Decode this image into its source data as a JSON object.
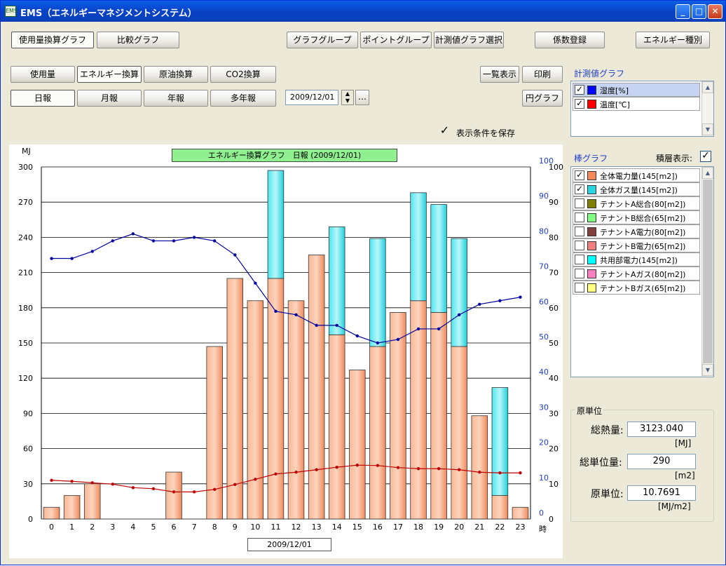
{
  "window": {
    "title": "EMS（エネルギーマネジメントシステム）",
    "icon_text": "EMS"
  },
  "top_buttons": {
    "usage_graph": "使用量換算グラフ",
    "compare_graph": "比較グラフ",
    "graph_group": "グラフグループ",
    "point_group": "ポイントグループ",
    "measure_select": "計測値グラフ選択",
    "coef_register": "係数登録",
    "energy_type": "エネルギー種別"
  },
  "mode_buttons": {
    "usage": "使用量",
    "energy": "エネルギー換算",
    "crude": "原油換算",
    "co2": "CO2換算"
  },
  "period_buttons": {
    "daily": "日報",
    "monthly": "月報",
    "yearly": "年報",
    "multi_year": "多年報"
  },
  "date_value": "2009/12/01",
  "dots_label": "…",
  "right_buttons": {
    "list": "一覧表示",
    "print": "印刷",
    "pie": "円グラフ"
  },
  "save_condition": "表示条件を保存",
  "measure_panel": {
    "title": "計測値グラフ",
    "items": [
      {
        "label": "湿度[%]",
        "color": "#0000ff",
        "checked": true
      },
      {
        "label": "温度[℃]",
        "color": "#ff0000",
        "checked": true
      }
    ]
  },
  "bar_panel": {
    "title": "棒グラフ",
    "stack_label": "積層表示:",
    "items": [
      {
        "label": "全体電力量(145[m2])",
        "color": "#f4895a",
        "checked": true
      },
      {
        "label": "全体ガス量(145[m2])",
        "color": "#2ad5e0",
        "checked": true
      },
      {
        "label": "テナントA総合(80[m2])",
        "color": "#808000",
        "checked": false
      },
      {
        "label": "テナントB総合(65[m2])",
        "color": "#80ff80",
        "checked": false
      },
      {
        "label": "テナントA電力(80[m2])",
        "color": "#804040",
        "checked": false
      },
      {
        "label": "テナントB電力(65[m2])",
        "color": "#f08080",
        "checked": false
      },
      {
        "label": "共用部電力(145[m2])",
        "color": "#00ffff",
        "checked": false
      },
      {
        "label": "テナントAガス(80[m2])",
        "color": "#ff80c0",
        "checked": false
      },
      {
        "label": "テナントBガス(65[m2])",
        "color": "#ffff80",
        "checked": false
      }
    ]
  },
  "unit_panel": {
    "title": "原単位",
    "total_heat_label": "総熱量:",
    "total_heat_value": "3123.040",
    "total_heat_unit": "[MJ]",
    "total_unit_label": "総単位量:",
    "total_unit_value": "290",
    "total_unit_unit": "[m2]",
    "intensity_label": "原単位:",
    "intensity_value": "10.7691",
    "intensity_unit": "[MJ/m2]"
  },
  "chart_data": {
    "type": "bar",
    "title": "エネルギー換算グラフ　日報 (2009/12/01)",
    "xlabel": "2009/12/01",
    "x_unit": "時",
    "ylabel": "MJ",
    "ylim": [
      0,
      300
    ],
    "y_ticks": [
      0,
      30,
      60,
      90,
      120,
      150,
      180,
      210,
      240,
      270,
      300
    ],
    "y2_ticks_blue": [
      0,
      10,
      20,
      30,
      40,
      50,
      60,
      70,
      80,
      90,
      100
    ],
    "y2_ticks_black": [
      0,
      10,
      20,
      30,
      40,
      50,
      60,
      70,
      80,
      90,
      100
    ],
    "y2lim": [
      0,
      100
    ],
    "categories": [
      "0",
      "1",
      "2",
      "3",
      "4",
      "5",
      "6",
      "7",
      "8",
      "9",
      "10",
      "11",
      "12",
      "13",
      "14",
      "15",
      "16",
      "17",
      "18",
      "19",
      "20",
      "21",
      "22",
      "23"
    ],
    "series": [
      {
        "name": "全体電力量(145[m2])",
        "color": "#f4895a",
        "values": [
          10,
          20,
          30,
          0,
          0,
          0,
          40,
          0,
          147,
          205,
          186,
          205,
          186,
          225,
          157,
          127,
          147,
          176,
          186,
          176,
          147,
          88,
          20,
          10
        ]
      },
      {
        "name": "全体ガス量(145[m2])",
        "color": "#2ad5e0",
        "values": [
          0,
          0,
          0,
          0,
          0,
          0,
          0,
          0,
          0,
          0,
          0,
          92,
          0,
          0,
          92,
          0,
          92,
          0,
          92,
          92,
          92,
          0,
          92,
          0
        ]
      },
      {
        "name": "湿度[%]",
        "color": "#0000a0",
        "axis": "right",
        "values": [
          74,
          74,
          76,
          79,
          81,
          79,
          79,
          80,
          79,
          75,
          67,
          59,
          58,
          55,
          55,
          52,
          50,
          51,
          54,
          54,
          58,
          61,
          62,
          63
        ]
      },
      {
        "name": "温度[℃]",
        "color": "#c00000",
        "axis": "right",
        "values": [
          11,
          10.7,
          10.3,
          9.9,
          8.9,
          8.6,
          7.7,
          7.7,
          8.4,
          9.8,
          11.3,
          12.8,
          13.3,
          14,
          14.7,
          15.3,
          15.2,
          14.6,
          14.3,
          14.3,
          14,
          13.3,
          13.1,
          13.1
        ]
      }
    ],
    "grid": true,
    "legend": "none"
  }
}
